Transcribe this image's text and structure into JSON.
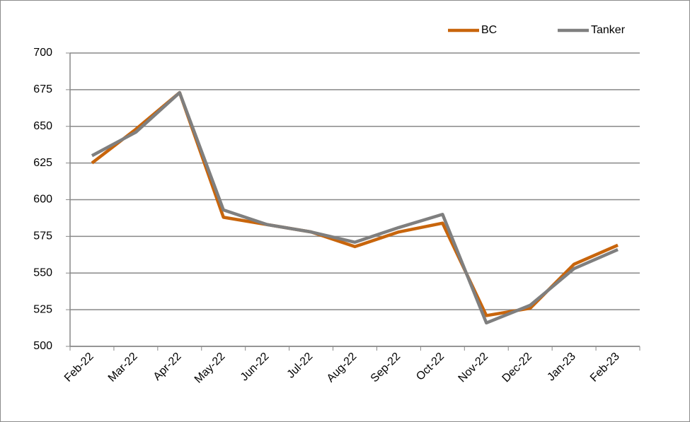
{
  "chart_data": {
    "type": "line",
    "categories": [
      "Feb-22",
      "Mar-22",
      "Apr-22",
      "May-22",
      "Jun-22",
      "Jul-22",
      "Aug-22",
      "Sep-22",
      "Oct-22",
      "Nov-22",
      "Dec-22",
      "Jan-23",
      "Feb-23"
    ],
    "series": [
      {
        "name": "BC",
        "color": "#c8650c",
        "values": [
          625,
          648,
          673,
          588,
          583,
          578,
          568,
          578,
          584,
          521,
          526,
          556,
          569
        ]
      },
      {
        "name": "Tanker",
        "color": "#7f7f7f",
        "values": [
          630,
          646,
          673,
          593,
          583,
          578,
          571,
          581,
          590,
          516,
          528,
          553,
          566
        ]
      }
    ],
    "ylim": [
      500,
      700
    ],
    "yticks": [
      500,
      525,
      550,
      575,
      600,
      625,
      650,
      675,
      700
    ],
    "grid": true,
    "legend": "top-right"
  }
}
